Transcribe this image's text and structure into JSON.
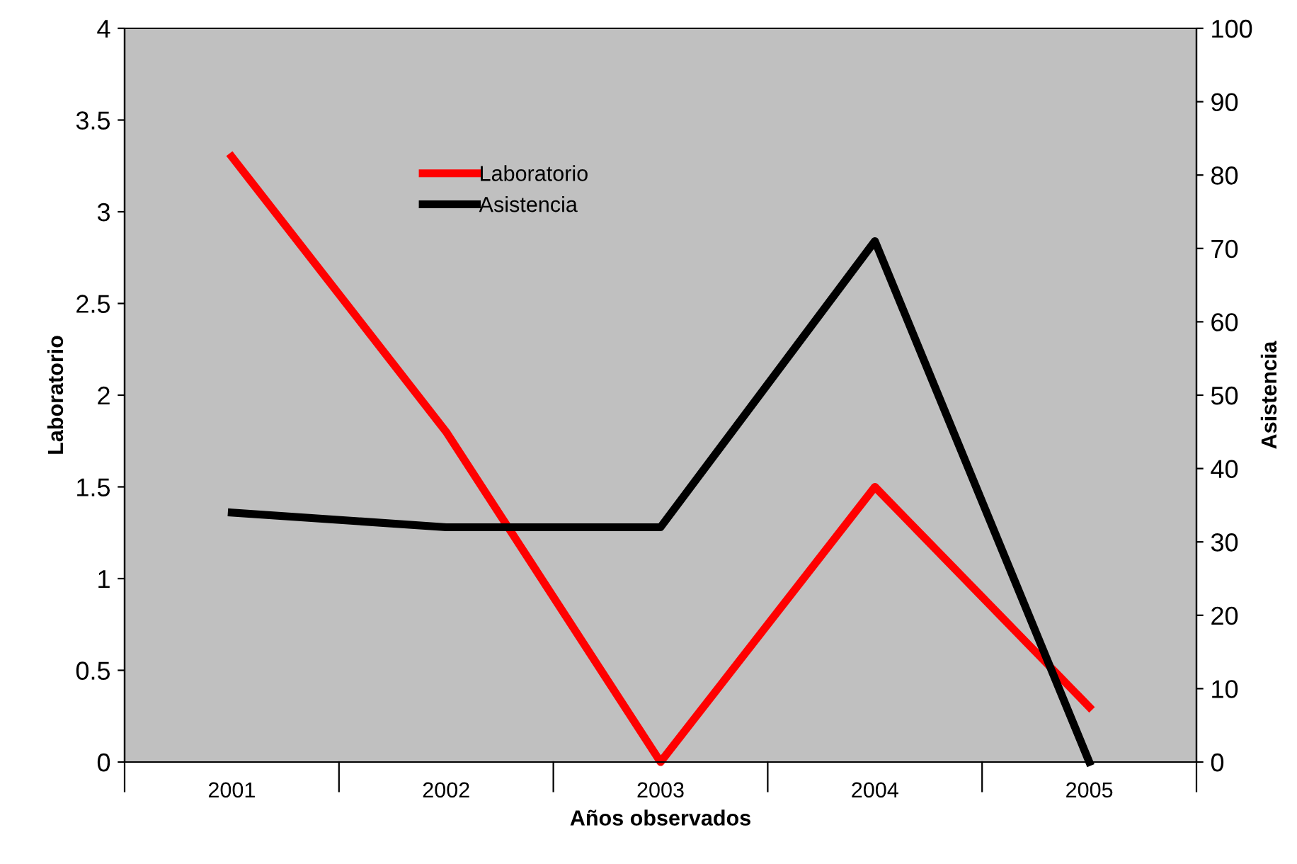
{
  "chart_data": {
    "type": "line",
    "xlabel": "Años observados",
    "ylabel": "Laboratorio",
    "y2label": "Asistencia",
    "categories": [
      "2001",
      "2002",
      "2003",
      "2004",
      "2005"
    ],
    "series": [
      {
        "name": "Laboratorio",
        "color": "#ff0000",
        "values": [
          3.3,
          1.8,
          0,
          1.5,
          0.3
        ]
      },
      {
        "name": "Asistencia",
        "color": "#000000",
        "axis": "y2",
        "values": [
          34,
          32,
          32,
          71,
          0
        ]
      }
    ],
    "ylim": [
      0,
      4
    ],
    "yticks": [
      0,
      0.5,
      1,
      1.5,
      2,
      2.5,
      3,
      3.5,
      4
    ],
    "y2lim": [
      0,
      100
    ],
    "y2ticks": [
      0,
      10,
      20,
      30,
      40,
      50,
      60,
      70,
      80,
      90,
      100
    ],
    "grid": false,
    "legend": "top left",
    "marker": "none",
    "line_style": "solid"
  }
}
